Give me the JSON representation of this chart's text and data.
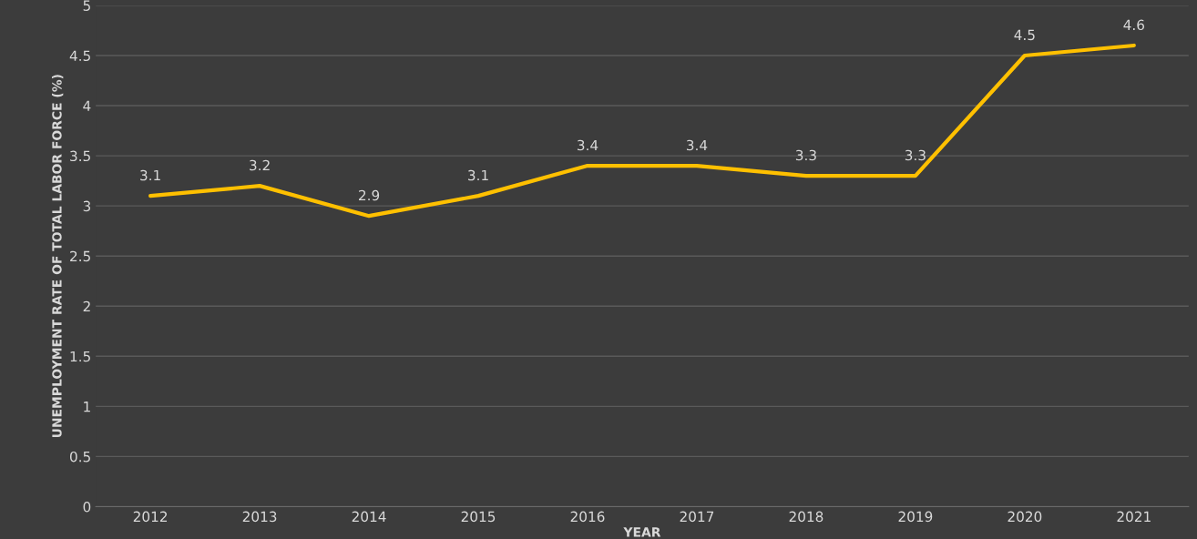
{
  "chart_data": {
    "type": "line",
    "xlabel": "YEAR",
    "ylabel": "UNEMPLOYMENT RATE OF TOTAL LABOR FORCE (%)",
    "categories": [
      "2012",
      "2013",
      "2014",
      "2015",
      "2016",
      "2017",
      "2018",
      "2019",
      "2020",
      "2021"
    ],
    "series": [
      {
        "color": "#ffc000",
        "values": [
          3.1,
          3.2,
          2.9,
          3.1,
          3.4,
          3.4,
          3.3,
          3.3,
          4.5,
          4.6
        ]
      }
    ],
    "ylim": [
      0,
      5
    ],
    "yticks": [
      0,
      0.5,
      1,
      1.5,
      2,
      2.5,
      3,
      3.5,
      4,
      4.5,
      5
    ],
    "grid": "y",
    "data_labels": true,
    "legend": false,
    "marker": "none",
    "line_style": "solid"
  }
}
